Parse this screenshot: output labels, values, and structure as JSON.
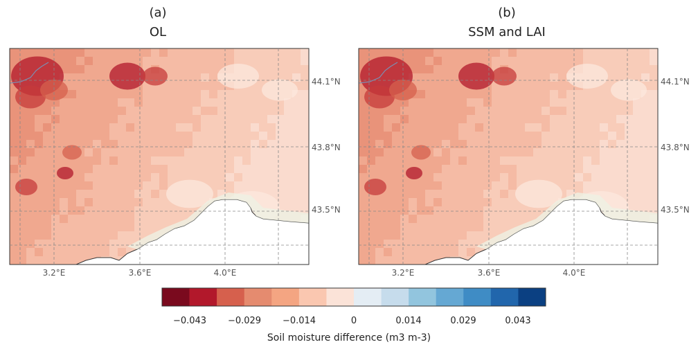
{
  "panels": [
    {
      "label": "(a)",
      "title": "OL"
    },
    {
      "label": "(b)",
      "title": "SSM and LAI"
    }
  ],
  "lon_ticks": [
    "3.2°E",
    "3.6°E",
    "4.0°E"
  ],
  "lat_ticks": [
    "44.1°N",
    "43.8°N",
    "43.5°N"
  ],
  "colorbar": {
    "colors": [
      "#7a0a1e",
      "#b2182b",
      "#d6604d",
      "#e58b6f",
      "#f4a582",
      "#fac7b0",
      "#fbe3d8",
      "#e4edf4",
      "#c6dcec",
      "#92c5de",
      "#65a8d3",
      "#3f8cc5",
      "#2166ac",
      "#0b4082"
    ],
    "tick_labels": [
      "−0.043",
      "−0.029",
      "−0.014",
      "0",
      "0.014",
      "0.029",
      "0.043"
    ],
    "title": "Soil moisture difference (m3 m-3)"
  },
  "land_colors": [
    "#e9937a",
    "#f0a88f",
    "#f5bba5",
    "#f8ccb9",
    "#fadbce",
    "#fce9e0"
  ],
  "dark_colors": [
    "#b2182b",
    "#c63b3b",
    "#d6604d"
  ],
  "coast_color": "#f0f0f0",
  "shore_tint": "#eef1e3"
}
